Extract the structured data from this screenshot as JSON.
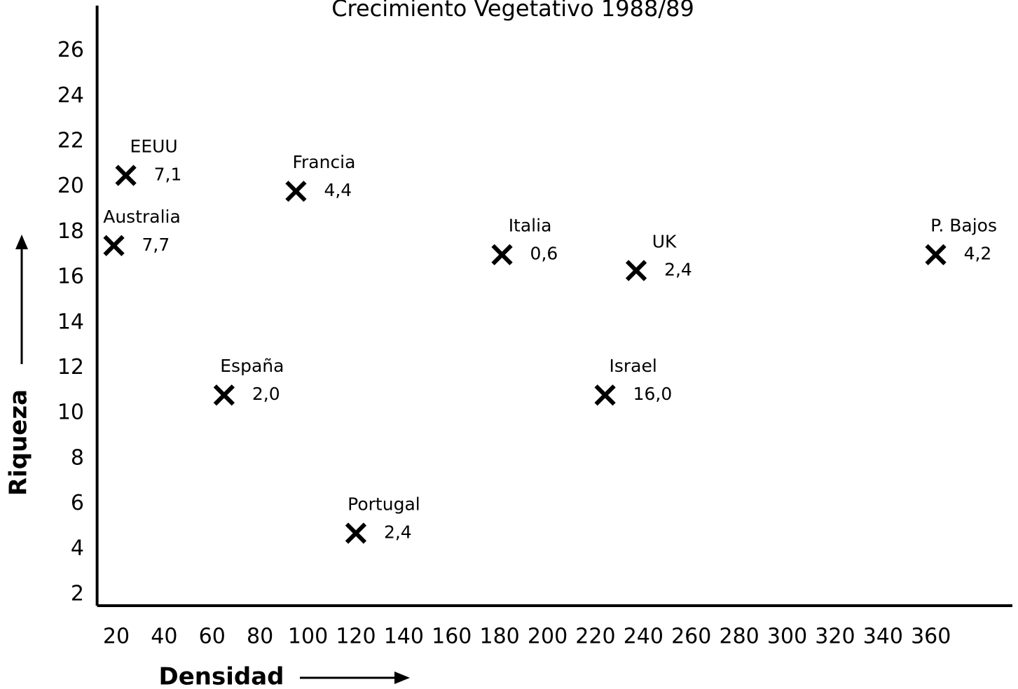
{
  "chart_data": {
    "type": "scatter",
    "title": "Crecimiento Vegetativo 1988/89",
    "xlabel": "Densidad",
    "ylabel": "Riqueza",
    "labels": [
      "EEUU",
      "Australia",
      "Francia",
      "España",
      "Portugal",
      "Italia",
      "UK",
      "Israel",
      "P. Bajos"
    ],
    "x": [
      24,
      19,
      95,
      65,
      120,
      181,
      237,
      224,
      362
    ],
    "values": [
      20.5,
      17.4,
      19.8,
      10.8,
      4.7,
      17.0,
      16.3,
      10.8,
      17.0
    ],
    "growth": [
      7.1,
      7.7,
      4.4,
      2.0,
      2.4,
      0.6,
      2.4,
      16.0,
      4.2
    ],
    "growth_labels": [
      "7,1",
      "7,7",
      "4,4",
      "2,0",
      "2,4",
      "0,6",
      "2,4",
      "16,0",
      "4,2"
    ],
    "color": "#000000",
    "xlim": [
      12,
      394
    ],
    "xticks": [
      20,
      40,
      60,
      80,
      100,
      120,
      140,
      160,
      180,
      200,
      220,
      240,
      260,
      280,
      300,
      320,
      340,
      360
    ],
    "ylim": [
      1.5,
      28
    ],
    "yticks": [
      2,
      4,
      6,
      8,
      10,
      12,
      14,
      16,
      18,
      20,
      22,
      24,
      26
    ],
    "grid": false
  }
}
